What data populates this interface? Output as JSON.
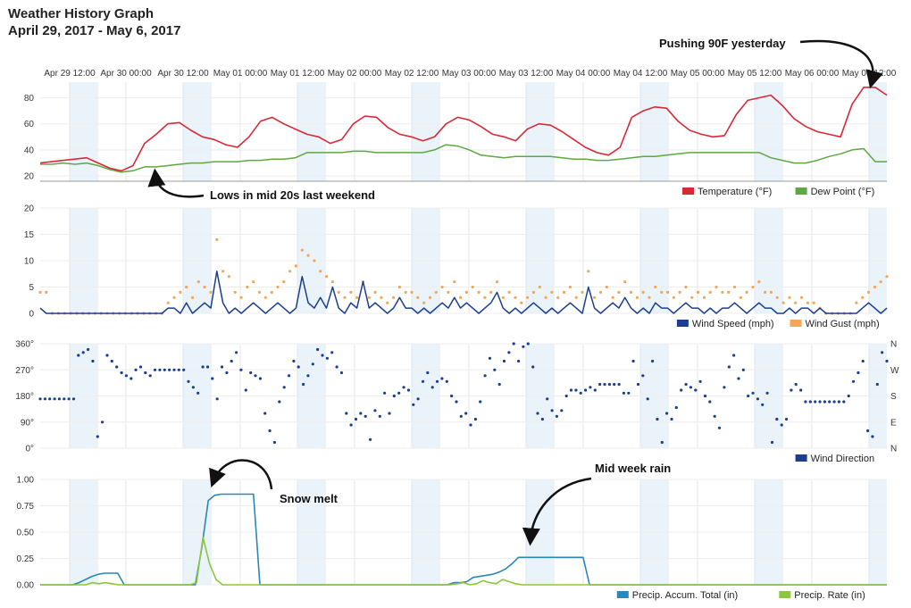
{
  "header": {
    "title": "Weather History Graph",
    "subtitle": "April 29, 2017 - May 6, 2017"
  },
  "chart_data": [
    {
      "type": "line",
      "x_tick_labels": [
        "Apr 29 12:00",
        "Apr 30 00:00",
        "Apr 30 12:00",
        "May 01 00:00",
        "May 01 12:00",
        "May 02 00:00",
        "May 02 12:00",
        "May 03 00:00",
        "May 03 12:00",
        "May 04 00:00",
        "May 04 12:00",
        "May 05 00:00",
        "May 05 12:00",
        "May 06 00:00",
        "May 06 12:00"
      ],
      "y_ticks": [
        20,
        40,
        60,
        80
      ],
      "ylim": [
        16,
        92
      ],
      "series": [
        {
          "name": "Temperature (°F)",
          "color": "#d62a36",
          "values": [
            30,
            31,
            32,
            33,
            34,
            30,
            26,
            24,
            28,
            45,
            52,
            60,
            61,
            55,
            50,
            48,
            44,
            42,
            50,
            62,
            65,
            60,
            56,
            52,
            50,
            45,
            48,
            60,
            66,
            65,
            57,
            52,
            50,
            47,
            50,
            60,
            65,
            63,
            58,
            52,
            50,
            47,
            56,
            60,
            59,
            54,
            48,
            42,
            38,
            36,
            42,
            65,
            70,
            73,
            72,
            62,
            55,
            52,
            50,
            51,
            67,
            78,
            80,
            82,
            74,
            64,
            58,
            54,
            52,
            50,
            75,
            88,
            88,
            82
          ]
        },
        {
          "name": "Dew Point (°F)",
          "color": "#5ea843",
          "values": [
            29,
            29,
            30,
            29,
            30,
            28,
            25,
            23,
            24,
            27,
            27,
            28,
            29,
            30,
            30,
            31,
            31,
            31,
            32,
            32,
            33,
            33,
            34,
            38,
            38,
            38,
            38,
            39,
            39,
            38,
            38,
            38,
            38,
            38,
            40,
            44,
            43,
            40,
            36,
            35,
            34,
            35,
            35,
            35,
            35,
            34,
            33,
            33,
            32,
            32,
            33,
            34,
            35,
            35,
            36,
            37,
            38,
            38,
            38,
            38,
            38,
            38,
            38,
            34,
            32,
            30,
            30,
            32,
            35,
            37,
            40,
            41,
            31,
            31
          ]
        }
      ],
      "annotations": [
        {
          "text": "Pushing 90F yesterday",
          "points_to": [
            "May 06 12:00",
            88
          ]
        },
        {
          "text": "Lows in mid 20s last weekend",
          "points_to": [
            "Apr 30 00:00",
            24
          ]
        }
      ]
    },
    {
      "type": "line",
      "y_ticks": [
        0,
        5,
        10,
        15,
        20
      ],
      "ylim": [
        0,
        20
      ],
      "series": [
        {
          "name": "Wind Speed (mph)",
          "color": "#1a3f8f",
          "values": [
            1,
            0,
            0,
            0,
            0,
            0,
            0,
            0,
            0,
            0,
            0,
            0,
            0,
            0,
            0,
            0,
            0,
            0,
            0,
            0,
            0,
            1,
            1,
            0,
            2,
            0,
            1,
            2,
            1,
            8,
            2,
            0,
            1,
            0,
            1,
            2,
            1,
            0,
            1,
            2,
            1,
            0,
            1,
            7,
            2,
            1,
            3,
            1,
            5,
            1,
            0,
            2,
            1,
            6,
            1,
            2,
            1,
            0,
            1,
            3,
            1,
            1,
            0,
            1,
            0,
            1,
            2,
            1,
            3,
            1,
            2,
            1,
            0,
            1,
            2,
            4,
            1,
            0,
            1,
            0,
            1,
            2,
            1,
            0,
            1,
            0,
            1,
            2,
            1,
            0,
            5,
            1,
            0,
            1,
            2,
            1,
            3,
            1,
            0,
            1,
            0,
            2,
            1,
            1,
            0,
            1,
            2,
            1,
            1,
            0,
            1,
            0,
            1,
            1,
            2,
            1,
            0,
            1,
            2,
            1,
            1,
            0,
            0,
            1,
            0,
            1,
            1,
            0,
            1,
            0,
            0,
            0,
            0,
            0,
            0,
            1,
            2,
            1,
            0,
            1
          ]
        },
        {
          "name": "Wind Gust (mph)",
          "color": "#f2a65a",
          "values": [
            4,
            4,
            0,
            0,
            0,
            0,
            0,
            0,
            0,
            0,
            0,
            0,
            0,
            0,
            0,
            0,
            0,
            0,
            0,
            0,
            0,
            2,
            3,
            4,
            5,
            3,
            6,
            5,
            4,
            14,
            8,
            7,
            4,
            3,
            5,
            6,
            4,
            3,
            4,
            5,
            6,
            8,
            9,
            12,
            11,
            10,
            8,
            7,
            6,
            4,
            3,
            4,
            3,
            6,
            3,
            4,
            3,
            2,
            3,
            5,
            4,
            4,
            3,
            2,
            3,
            4,
            5,
            4,
            6,
            3,
            4,
            5,
            4,
            3,
            4,
            6,
            3,
            4,
            3,
            2,
            3,
            4,
            5,
            3,
            4,
            3,
            4,
            5,
            3,
            4,
            8,
            3,
            4,
            5,
            3,
            4,
            6,
            4,
            3,
            4,
            3,
            5,
            4,
            4,
            3,
            4,
            5,
            3,
            4,
            3,
            4,
            5,
            4,
            4,
            5,
            3,
            4,
            5,
            6,
            4,
            4,
            3,
            2,
            3,
            2,
            3,
            2,
            2,
            1,
            0,
            0,
            0,
            0,
            0,
            2,
            3,
            4,
            5,
            6,
            7
          ]
        }
      ]
    },
    {
      "type": "scatter",
      "y_ticks": [
        "0°",
        "90°",
        "180°",
        "270°",
        "360°"
      ],
      "y_right_labels": [
        "N",
        "E",
        "S",
        "W",
        "N"
      ],
      "ylim": [
        0,
        360
      ],
      "series": [
        {
          "name": "Wind Direction",
          "color": "#1a3f8f",
          "values": [
            170,
            170,
            170,
            170,
            170,
            170,
            170,
            170,
            320,
            330,
            340,
            300,
            40,
            90,
            320,
            300,
            280,
            260,
            250,
            240,
            270,
            280,
            260,
            250,
            270,
            270,
            270,
            270,
            270,
            270,
            270,
            230,
            210,
            190,
            280,
            280,
            240,
            170,
            280,
            260,
            300,
            330,
            270,
            200,
            260,
            250,
            240,
            120,
            60,
            20,
            160,
            210,
            250,
            300,
            280,
            220,
            250,
            290,
            340,
            320,
            310,
            330,
            280,
            260,
            120,
            80,
            100,
            120,
            110,
            30,
            130,
            110,
            190,
            120,
            180,
            190,
            210,
            200,
            150,
            170,
            230,
            260,
            210,
            230,
            240,
            230,
            180,
            160,
            110,
            120,
            80,
            100,
            160,
            250,
            310,
            270,
            220,
            300,
            330,
            360,
            300,
            350,
            360,
            280,
            120,
            100,
            170,
            130,
            110,
            130,
            180,
            200,
            200,
            190,
            200,
            210,
            200,
            220,
            220,
            220,
            220,
            220,
            190,
            190,
            300,
            220,
            250,
            170,
            300,
            100,
            20,
            120,
            100,
            140,
            200,
            220,
            210,
            200,
            230,
            180,
            160,
            110,
            70,
            210,
            280,
            320,
            240,
            270,
            180,
            190,
            170,
            150,
            190,
            20,
            100,
            80,
            100,
            200,
            220,
            200,
            160,
            160,
            160,
            160,
            160,
            160,
            160,
            160,
            160,
            180,
            230,
            260,
            300,
            60,
            40,
            220,
            330,
            300
          ]
        }
      ]
    },
    {
      "type": "area",
      "y_ticks": [
        "0.00",
        "0.25",
        "0.50",
        "0.75",
        "1.00"
      ],
      "ylim": [
        0,
        1
      ],
      "series": [
        {
          "name": "Precip. Accum. Total (in)",
          "color": "#2a87b8",
          "values": [
            0,
            0,
            0,
            0,
            0,
            0,
            0.02,
            0.05,
            0.08,
            0.1,
            0.11,
            0.11,
            0.11,
            0,
            0,
            0,
            0,
            0,
            0,
            0,
            0,
            0,
            0,
            0,
            0,
            0.35,
            0.8,
            0.85,
            0.86,
            0.86,
            0.86,
            0.86,
            0.86,
            0.86,
            0,
            0,
            0,
            0,
            0,
            0,
            0,
            0,
            0,
            0,
            0,
            0,
            0,
            0,
            0,
            0,
            0,
            0,
            0,
            0,
            0,
            0,
            0,
            0,
            0,
            0,
            0,
            0,
            0,
            0,
            0.02,
            0.02,
            0.03,
            0.07,
            0.08,
            0.09,
            0.1,
            0.12,
            0.15,
            0.2,
            0.26,
            0.26,
            0.26,
            0.26,
            0.26,
            0.26,
            0.26,
            0.26,
            0.26,
            0.26,
            0.26,
            0,
            0,
            0,
            0,
            0,
            0,
            0,
            0,
            0,
            0,
            0,
            0,
            0,
            0,
            0,
            0,
            0,
            0,
            0,
            0,
            0,
            0,
            0,
            0,
            0,
            0,
            0,
            0,
            0,
            0,
            0,
            0,
            0,
            0,
            0,
            0,
            0,
            0,
            0,
            0,
            0,
            0,
            0,
            0,
            0,
            0,
            0
          ]
        },
        {
          "name": "Precip. Rate (in)",
          "color": "#8cc63f",
          "values": [
            0,
            0,
            0,
            0,
            0,
            0,
            0,
            0,
            0.02,
            0.01,
            0.02,
            0.01,
            0,
            0,
            0,
            0,
            0,
            0,
            0,
            0,
            0,
            0,
            0,
            0,
            0.02,
            0.45,
            0.2,
            0.05,
            0,
            0,
            0,
            0,
            0,
            0,
            0,
            0,
            0,
            0,
            0,
            0,
            0,
            0,
            0,
            0,
            0,
            0,
            0,
            0,
            0,
            0,
            0,
            0,
            0,
            0,
            0,
            0,
            0,
            0,
            0,
            0,
            0,
            0,
            0,
            0,
            0.01,
            0.02,
            0,
            0.01,
            0.04,
            0.02,
            0.01,
            0.05,
            0.03,
            0.01,
            0,
            0,
            0,
            0,
            0,
            0,
            0,
            0,
            0,
            0,
            0,
            0,
            0,
            0,
            0,
            0,
            0,
            0,
            0,
            0,
            0,
            0,
            0,
            0,
            0,
            0,
            0,
            0,
            0,
            0,
            0,
            0,
            0,
            0,
            0,
            0,
            0,
            0,
            0,
            0,
            0,
            0,
            0,
            0,
            0,
            0,
            0,
            0,
            0,
            0,
            0,
            0,
            0,
            0,
            0,
            0,
            0
          ]
        }
      ],
      "annotations": [
        {
          "text": "Snow melt",
          "points_to": [
            "Apr 30 12:00",
            0.86
          ]
        },
        {
          "text": "Mid week rain",
          "points_to": [
            "May 03 12:00",
            0.26
          ]
        }
      ]
    }
  ]
}
